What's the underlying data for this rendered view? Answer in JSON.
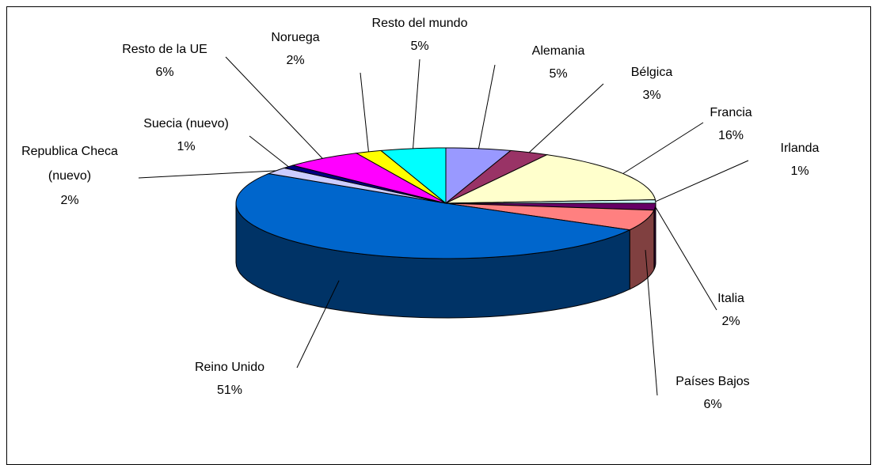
{
  "chart_data": {
    "type": "pie3d",
    "categories": [
      "Alemania",
      "Bélgica",
      "Francia",
      "Irlanda",
      "Italia",
      "Países Bajos",
      "Reino Unido",
      "Republica Checa (nuevo)",
      "Suecia (nuevo)",
      "Resto de la UE",
      "Noruega",
      "Resto del mundo"
    ],
    "values": [
      5,
      3,
      16,
      1,
      2,
      6,
      51,
      2,
      1,
      6,
      2,
      5
    ],
    "value_labels": [
      "5%",
      "3%",
      "16%",
      "1%",
      "2%",
      "6%",
      "51%",
      "2%",
      "1%",
      "6%",
      "2%",
      "5%"
    ],
    "colors": [
      "#9999ff",
      "#993366",
      "#ffffcc",
      "#ccffff",
      "#660066",
      "#ff8080",
      "#0066cc",
      "#ccccff",
      "#000080",
      "#ff00ff",
      "#ffff00",
      "#00ffff"
    ]
  }
}
